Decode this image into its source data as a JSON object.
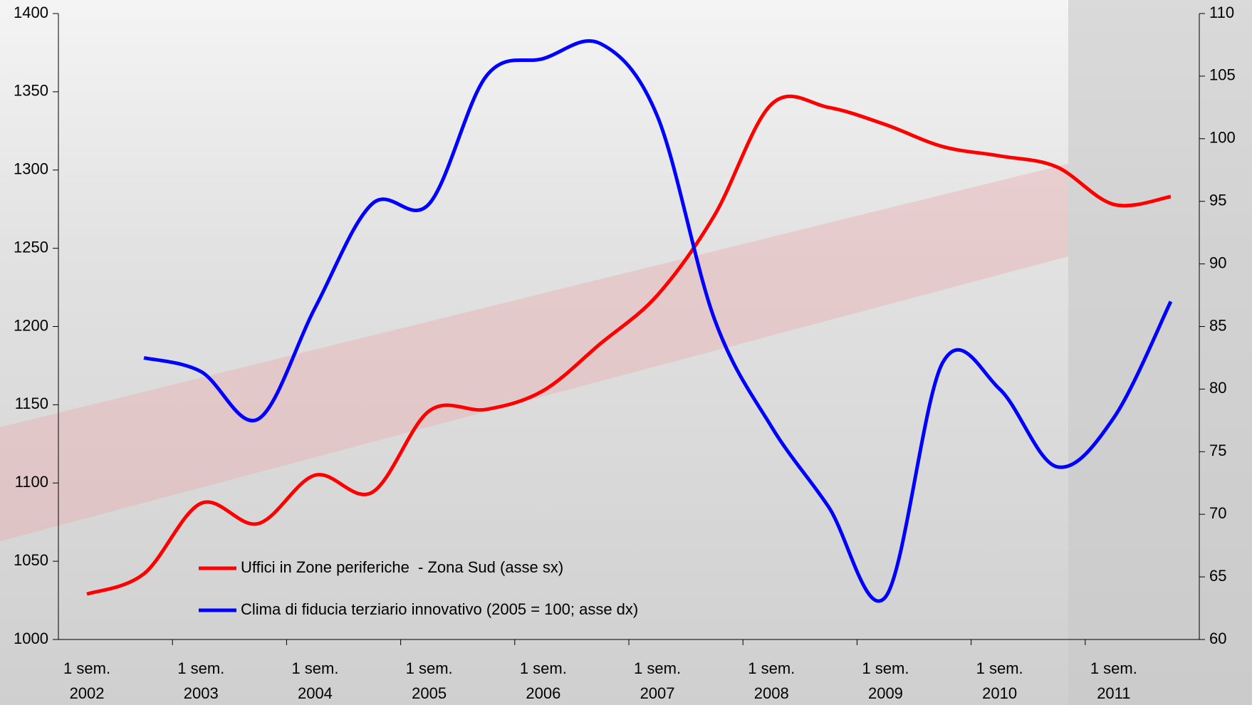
{
  "chart_data": {
    "type": "line",
    "categories": [
      "1 sem.\n2002",
      null,
      "1 sem.\n2003",
      null,
      "1 sem.\n2004",
      null,
      "1 sem.\n2005",
      null,
      "1 sem.\n2006",
      null,
      "1 sem.\n2007",
      null,
      "1 sem.\n2008",
      null,
      "1 sem.\n2009",
      null,
      "1 sem.\n2010",
      null,
      "1 sem.\n2011",
      null
    ],
    "series": [
      {
        "name": "Uffici in Zone periferiche  - Zona Sud (asse sx)",
        "color": "#ff0000",
        "axis": "y",
        "values": [
          1029,
          1042,
          1087,
          1074,
          1105,
          1094,
          1146,
          1147,
          1159,
          1189,
          1220,
          1271,
          1342,
          1340,
          1329,
          1315,
          1309,
          1302,
          1278,
          1283
        ]
      },
      {
        "name": "Clima di fiducia terziario innovativo (2005 = 100; asse dx)",
        "color": "#0000ff",
        "axis": "y2",
        "values": [
          null,
          82.5,
          81.4,
          77.6,
          86.5,
          94.8,
          94.8,
          105,
          106.4,
          107.6,
          101.8,
          85.6,
          77.0,
          70.6,
          63.4,
          82.1,
          80,
          73.8,
          77.7,
          87.0
        ]
      }
    ],
    "ylim": [
      1000,
      1400
    ],
    "yticks": [
      1000,
      1050,
      1100,
      1150,
      1200,
      1250,
      1300,
      1350,
      1400
    ],
    "y2lim": [
      60,
      110
    ],
    "y2ticks": [
      60,
      65,
      70,
      75,
      80,
      85,
      90,
      95,
      100,
      105,
      110
    ]
  }
}
